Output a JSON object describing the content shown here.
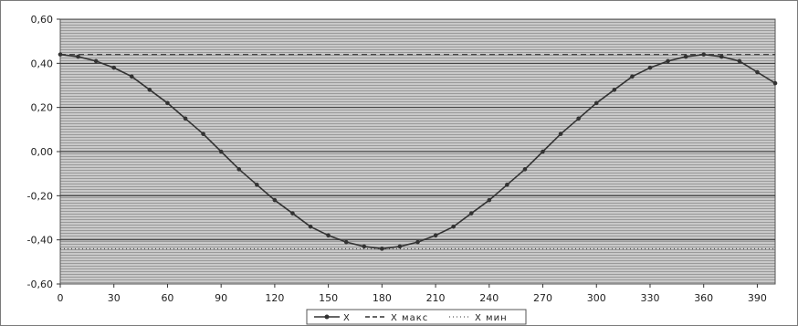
{
  "chart_data": {
    "type": "line",
    "title": "",
    "xlabel": "",
    "ylabel": "",
    "xlim": [
      0,
      400
    ],
    "ylim": [
      -0.6,
      0.6
    ],
    "x_ticks": [
      0,
      30,
      60,
      90,
      120,
      150,
      180,
      210,
      240,
      270,
      300,
      330,
      360,
      390
    ],
    "y_tick_values": [
      0.6,
      0.4,
      0.2,
      0.0,
      -0.2,
      -0.4,
      -0.6
    ],
    "y_tick_labels": [
      "0,60",
      "0,40",
      "0,20",
      "0,00",
      "-0,20",
      "-0,40",
      "-0,60"
    ],
    "grid": true,
    "legend_position": "bottom-center",
    "series": [
      {
        "name": "X",
        "color": "#333333",
        "x": [
          0,
          10,
          20,
          30,
          40,
          50,
          60,
          70,
          80,
          90,
          100,
          110,
          120,
          130,
          140,
          150,
          160,
          170,
          180,
          190,
          200,
          210,
          220,
          230,
          240,
          250,
          260,
          270,
          280,
          290,
          300,
          310,
          320,
          330,
          340,
          350,
          360,
          370,
          380,
          390,
          400
        ],
        "y": [
          0.44,
          0.43,
          0.41,
          0.38,
          0.34,
          0.28,
          0.22,
          0.15,
          0.08,
          0.0,
          -0.08,
          -0.15,
          -0.22,
          -0.28,
          -0.34,
          -0.38,
          -0.41,
          -0.43,
          -0.44,
          -0.43,
          -0.41,
          -0.38,
          -0.34,
          -0.28,
          -0.22,
          -0.15,
          -0.08,
          0.0,
          0.08,
          0.15,
          0.22,
          0.28,
          0.34,
          0.38,
          0.41,
          0.43,
          0.44,
          0.43,
          0.41,
          0.36,
          0.31
        ]
      },
      {
        "name": "X макс",
        "color": "#333333",
        "value": 0.44
      },
      {
        "name": "X мин",
        "color": "#333333",
        "value": -0.44
      }
    ]
  }
}
